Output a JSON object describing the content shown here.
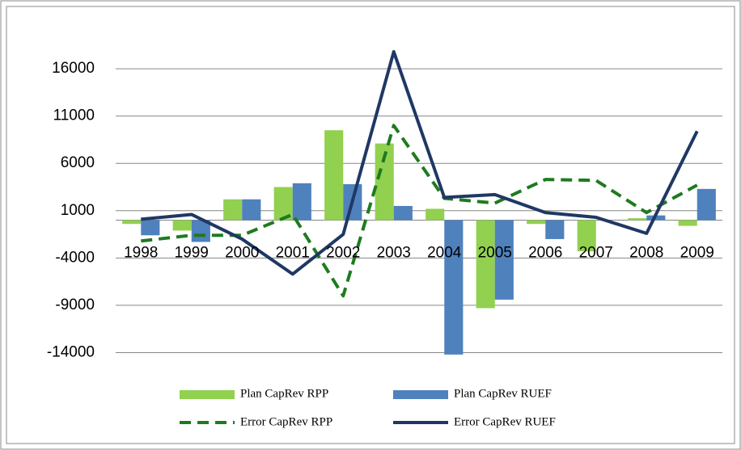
{
  "chart_data": {
    "type": "bar_line",
    "categories": [
      "1998",
      "1999",
      "2000",
      "2001",
      "2002",
      "2003",
      "2004",
      "2005",
      "2006",
      "2007",
      "2008",
      "2009"
    ],
    "series": [
      {
        "name": "Plan CapRev RPP",
        "type": "bar",
        "color": "#92d050",
        "values": [
          -400,
          -1100,
          2200,
          3500,
          9500,
          8100,
          1200,
          -9300,
          -400,
          -3300,
          200,
          -600
        ]
      },
      {
        "name": "Plan CapRev RUEF",
        "type": "bar",
        "color": "#4f81bd",
        "values": [
          -1600,
          -2300,
          2200,
          3900,
          3800,
          1500,
          -14200,
          -8400,
          -2000,
          0,
          500,
          3300
        ]
      },
      {
        "name": "Error CapRev RPP",
        "type": "line",
        "dashed": true,
        "color": "#1e7b1e",
        "values": [
          -2200,
          -1600,
          -1600,
          600,
          -8000,
          10000,
          2300,
          1800,
          4300,
          4200,
          800,
          3700
        ]
      },
      {
        "name": "Error CapRev RUEF",
        "type": "line",
        "dashed": false,
        "color": "#1f3864",
        "values": [
          100,
          600,
          -2000,
          -5700,
          -1500,
          17800,
          2400,
          2700,
          800,
          300,
          -1400,
          9400
        ]
      }
    ],
    "ylim": [
      -14000,
      21000
    ],
    "yticks": [
      -14000,
      -9000,
      -4000,
      1000,
      6000,
      11000,
      16000
    ],
    "grid": true
  }
}
